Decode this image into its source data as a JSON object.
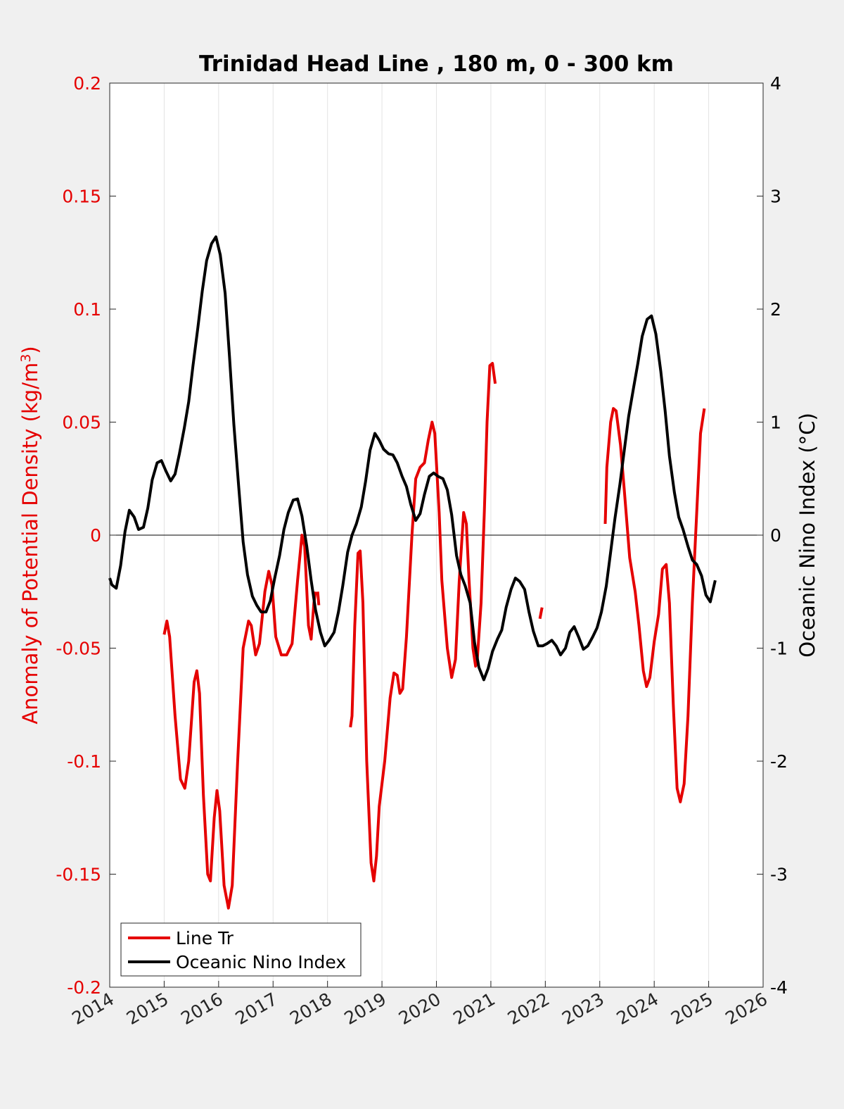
{
  "chart_data": {
    "type": "line",
    "title": "Trinidad Head Line , 180 m, 0 - 300 km",
    "ylabel_left": "Anomaly of Potential Density (kg/m",
    "ylabel_left_sup": "3",
    "ylabel_left_close": ")",
    "ylabel_right": "Oceanic Nino Index (°C)",
    "xlim": [
      2014,
      2026
    ],
    "ylim_left": [
      -0.2,
      0.2
    ],
    "ylim_right": [
      -4,
      4
    ],
    "x_ticks": [
      "2014",
      "2015",
      "2016",
      "2017",
      "2018",
      "2019",
      "2020",
      "2021",
      "2022",
      "2023",
      "2024",
      "2025",
      "2026"
    ],
    "y_ticks_left": [
      "0.2",
      "0.15",
      "0.1",
      "0.05",
      "0",
      "-0.05",
      "-0.1",
      "-0.15",
      "-0.2"
    ],
    "y_ticks_right": [
      "4",
      "3",
      "2",
      "1",
      "0",
      "-1",
      "-2",
      "-3",
      "-4"
    ],
    "grid": "vertical",
    "legend_position": "bottom-left",
    "colors": {
      "line_tr": "#e50000",
      "oni": "#000000"
    },
    "series": [
      {
        "name": "Line Tr",
        "axis": "left",
        "color": "#e50000",
        "segments": [
          [
            [
              2015.0,
              -0.044
            ],
            [
              2015.05,
              -0.038
            ],
            [
              2015.1,
              -0.045
            ],
            [
              2015.2,
              -0.08
            ],
            [
              2015.3,
              -0.108
            ],
            [
              2015.38,
              -0.112
            ],
            [
              2015.45,
              -0.1
            ],
            [
              2015.55,
              -0.065
            ],
            [
              2015.6,
              -0.06
            ],
            [
              2015.65,
              -0.07
            ],
            [
              2015.72,
              -0.115
            ],
            [
              2015.8,
              -0.15
            ],
            [
              2015.85,
              -0.153
            ],
            [
              2015.92,
              -0.125
            ],
            [
              2015.97,
              -0.113
            ],
            [
              2016.02,
              -0.122
            ],
            [
              2016.1,
              -0.155
            ],
            [
              2016.18,
              -0.165
            ],
            [
              2016.25,
              -0.155
            ],
            [
              2016.35,
              -0.1
            ],
            [
              2016.45,
              -0.05
            ],
            [
              2016.55,
              -0.038
            ],
            [
              2016.6,
              -0.04
            ],
            [
              2016.68,
              -0.053
            ],
            [
              2016.75,
              -0.048
            ],
            [
              2016.85,
              -0.025
            ],
            [
              2016.92,
              -0.016
            ],
            [
              2016.98,
              -0.022
            ],
            [
              2017.05,
              -0.045
            ],
            [
              2017.15,
              -0.053
            ],
            [
              2017.25,
              -0.053
            ],
            [
              2017.35,
              -0.048
            ],
            [
              2017.45,
              -0.02
            ],
            [
              2017.53,
              0.0
            ],
            [
              2017.58,
              -0.005
            ],
            [
              2017.65,
              -0.04
            ],
            [
              2017.7,
              -0.046
            ],
            [
              2017.75,
              -0.03
            ],
            [
              2017.78,
              -0.025
            ]
          ],
          [
            [
              2017.82,
              -0.025
            ],
            [
              2017.84,
              -0.031
            ]
          ],
          [
            [
              2018.42,
              -0.085
            ],
            [
              2018.45,
              -0.08
            ],
            [
              2018.5,
              -0.04
            ],
            [
              2018.56,
              -0.008
            ],
            [
              2018.6,
              -0.007
            ],
            [
              2018.65,
              -0.03
            ],
            [
              2018.72,
              -0.1
            ],
            [
              2018.8,
              -0.145
            ],
            [
              2018.85,
              -0.153
            ],
            [
              2018.9,
              -0.142
            ],
            [
              2018.95,
              -0.12
            ],
            [
              2019.05,
              -0.1
            ],
            [
              2019.15,
              -0.072
            ],
            [
              2019.22,
              -0.061
            ],
            [
              2019.28,
              -0.062
            ],
            [
              2019.33,
              -0.07
            ],
            [
              2019.38,
              -0.068
            ],
            [
              2019.45,
              -0.045
            ],
            [
              2019.55,
              0.0
            ],
            [
              2019.62,
              0.025
            ],
            [
              2019.7,
              0.03
            ],
            [
              2019.78,
              0.032
            ],
            [
              2019.85,
              0.042
            ],
            [
              2019.92,
              0.05
            ],
            [
              2019.97,
              0.045
            ],
            [
              2020.05,
              0.01
            ],
            [
              2020.1,
              -0.02
            ],
            [
              2020.2,
              -0.05
            ],
            [
              2020.28,
              -0.063
            ],
            [
              2020.35,
              -0.055
            ],
            [
              2020.42,
              -0.02
            ],
            [
              2020.5,
              0.01
            ],
            [
              2020.55,
              0.005
            ],
            [
              2020.6,
              -0.02
            ],
            [
              2020.67,
              -0.05
            ],
            [
              2020.72,
              -0.058
            ],
            [
              2020.75,
              -0.055
            ],
            [
              2020.82,
              -0.03
            ],
            [
              2020.88,
              0.01
            ],
            [
              2020.93,
              0.05
            ],
            [
              2020.98,
              0.075
            ],
            [
              2021.03,
              0.076
            ],
            [
              2021.08,
              0.067
            ]
          ],
          [
            [
              2021.9,
              -0.037
            ],
            [
              2021.94,
              -0.032
            ]
          ],
          [
            [
              2023.1,
              0.005
            ],
            [
              2023.13,
              0.03
            ],
            [
              2023.2,
              0.05
            ],
            [
              2023.25,
              0.056
            ],
            [
              2023.3,
              0.055
            ],
            [
              2023.38,
              0.04
            ],
            [
              2023.45,
              0.02
            ],
            [
              2023.55,
              -0.01
            ],
            [
              2023.65,
              -0.025
            ],
            [
              2023.72,
              -0.04
            ],
            [
              2023.8,
              -0.06
            ],
            [
              2023.86,
              -0.067
            ],
            [
              2023.92,
              -0.063
            ],
            [
              2024.0,
              -0.047
            ],
            [
              2024.08,
              -0.035
            ],
            [
              2024.15,
              -0.015
            ],
            [
              2024.22,
              -0.013
            ],
            [
              2024.28,
              -0.03
            ],
            [
              2024.35,
              -0.075
            ],
            [
              2024.42,
              -0.112
            ],
            [
              2024.48,
              -0.118
            ],
            [
              2024.55,
              -0.11
            ],
            [
              2024.62,
              -0.08
            ],
            [
              2024.7,
              -0.03
            ],
            [
              2024.78,
              0.01
            ],
            [
              2024.85,
              0.045
            ],
            [
              2024.92,
              0.056
            ]
          ]
        ]
      },
      {
        "name": "Oceanic Nino Index",
        "axis": "right",
        "color": "#000000",
        "segments": [
          [
            [
              2014.0,
              -0.38
            ],
            [
              2014.04,
              -0.44
            ],
            [
              2014.12,
              -0.47
            ],
            [
              2014.2,
              -0.27
            ],
            [
              2014.28,
              0.03
            ],
            [
              2014.36,
              0.22
            ],
            [
              2014.45,
              0.16
            ],
            [
              2014.53,
              0.05
            ],
            [
              2014.62,
              0.07
            ],
            [
              2014.7,
              0.24
            ],
            [
              2014.78,
              0.49
            ],
            [
              2014.87,
              0.64
            ],
            [
              2014.95,
              0.66
            ],
            [
              2015.03,
              0.57
            ],
            [
              2015.12,
              0.48
            ],
            [
              2015.2,
              0.54
            ],
            [
              2015.28,
              0.72
            ],
            [
              2015.37,
              0.95
            ],
            [
              2015.45,
              1.18
            ],
            [
              2015.53,
              1.5
            ],
            [
              2015.62,
              1.84
            ],
            [
              2015.7,
              2.16
            ],
            [
              2015.78,
              2.43
            ],
            [
              2015.87,
              2.58
            ],
            [
              2015.95,
              2.64
            ],
            [
              2016.03,
              2.48
            ],
            [
              2016.12,
              2.14
            ],
            [
              2016.2,
              1.58
            ],
            [
              2016.28,
              0.98
            ],
            [
              2016.37,
              0.42
            ],
            [
              2016.45,
              -0.06
            ],
            [
              2016.53,
              -0.35
            ],
            [
              2016.62,
              -0.54
            ],
            [
              2016.7,
              -0.62
            ],
            [
              2016.78,
              -0.68
            ],
            [
              2016.87,
              -0.68
            ],
            [
              2016.95,
              -0.58
            ],
            [
              2017.03,
              -0.38
            ],
            [
              2017.12,
              -0.18
            ],
            [
              2017.2,
              0.05
            ],
            [
              2017.28,
              0.2
            ],
            [
              2017.37,
              0.31
            ],
            [
              2017.45,
              0.32
            ],
            [
              2017.53,
              0.17
            ],
            [
              2017.62,
              -0.1
            ],
            [
              2017.7,
              -0.4
            ],
            [
              2017.78,
              -0.66
            ],
            [
              2017.87,
              -0.86
            ],
            [
              2017.95,
              -0.98
            ],
            [
              2018.03,
              -0.93
            ],
            [
              2018.12,
              -0.86
            ],
            [
              2018.2,
              -0.68
            ],
            [
              2018.28,
              -0.45
            ],
            [
              2018.37,
              -0.15
            ],
            [
              2018.45,
              0.0
            ],
            [
              2018.53,
              0.1
            ],
            [
              2018.62,
              0.25
            ],
            [
              2018.7,
              0.48
            ],
            [
              2018.78,
              0.75
            ],
            [
              2018.87,
              0.9
            ],
            [
              2018.95,
              0.84
            ],
            [
              2019.03,
              0.76
            ],
            [
              2019.12,
              0.72
            ],
            [
              2019.2,
              0.71
            ],
            [
              2019.28,
              0.64
            ],
            [
              2019.37,
              0.52
            ],
            [
              2019.45,
              0.43
            ],
            [
              2019.53,
              0.27
            ],
            [
              2019.62,
              0.13
            ],
            [
              2019.7,
              0.19
            ],
            [
              2019.78,
              0.36
            ],
            [
              2019.87,
              0.52
            ],
            [
              2019.95,
              0.55
            ],
            [
              2020.03,
              0.52
            ],
            [
              2020.12,
              0.5
            ],
            [
              2020.2,
              0.4
            ],
            [
              2020.28,
              0.18
            ],
            [
              2020.37,
              -0.18
            ],
            [
              2020.45,
              -0.35
            ],
            [
              2020.53,
              -0.45
            ],
            [
              2020.62,
              -0.6
            ],
            [
              2020.7,
              -0.95
            ],
            [
              2020.78,
              -1.17
            ],
            [
              2020.87,
              -1.28
            ],
            [
              2020.95,
              -1.18
            ],
            [
              2021.03,
              -1.03
            ],
            [
              2021.12,
              -0.92
            ],
            [
              2021.2,
              -0.84
            ],
            [
              2021.28,
              -0.64
            ],
            [
              2021.37,
              -0.48
            ],
            [
              2021.45,
              -0.38
            ],
            [
              2021.53,
              -0.41
            ],
            [
              2021.62,
              -0.48
            ],
            [
              2021.7,
              -0.68
            ],
            [
              2021.78,
              -0.85
            ],
            [
              2021.87,
              -0.98
            ],
            [
              2021.95,
              -0.98
            ],
            [
              2022.03,
              -0.96
            ],
            [
              2022.12,
              -0.93
            ],
            [
              2022.2,
              -0.98
            ],
            [
              2022.28,
              -1.06
            ],
            [
              2022.37,
              -1.0
            ],
            [
              2022.45,
              -0.86
            ],
            [
              2022.53,
              -0.81
            ],
            [
              2022.62,
              -0.91
            ],
            [
              2022.7,
              -1.01
            ],
            [
              2022.78,
              -0.98
            ],
            [
              2022.87,
              -0.9
            ],
            [
              2022.95,
              -0.82
            ],
            [
              2023.03,
              -0.68
            ],
            [
              2023.12,
              -0.45
            ],
            [
              2023.2,
              -0.15
            ],
            [
              2023.28,
              0.15
            ],
            [
              2023.37,
              0.45
            ],
            [
              2023.45,
              0.75
            ],
            [
              2023.53,
              1.05
            ],
            [
              2023.62,
              1.3
            ],
            [
              2023.7,
              1.52
            ],
            [
              2023.78,
              1.76
            ],
            [
              2023.87,
              1.91
            ],
            [
              2023.95,
              1.94
            ],
            [
              2024.03,
              1.78
            ],
            [
              2024.12,
              1.45
            ],
            [
              2024.2,
              1.1
            ],
            [
              2024.28,
              0.7
            ],
            [
              2024.37,
              0.38
            ],
            [
              2024.45,
              0.16
            ],
            [
              2024.53,
              0.05
            ],
            [
              2024.62,
              -0.1
            ],
            [
              2024.7,
              -0.22
            ],
            [
              2024.78,
              -0.26
            ],
            [
              2024.87,
              -0.36
            ],
            [
              2024.95,
              -0.53
            ],
            [
              2025.03,
              -0.59
            ],
            [
              2025.12,
              -0.4
            ]
          ]
        ]
      }
    ]
  }
}
